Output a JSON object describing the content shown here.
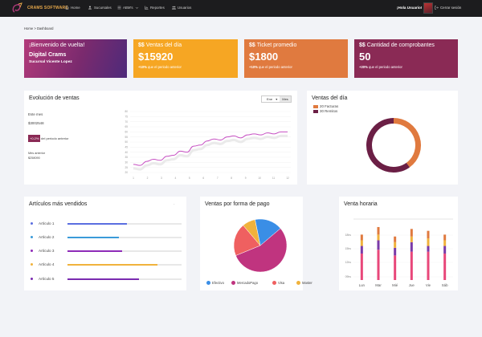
{
  "app": {
    "brand": "CRAMS SOFTWARE",
    "nav": [
      {
        "label": "Home",
        "icon": "home-icon"
      },
      {
        "label": "Sucursales",
        "icon": "users-icon"
      },
      {
        "label": "ABM's",
        "icon": "list-icon"
      },
      {
        "label": "Reportes",
        "icon": "chart-icon"
      },
      {
        "label": "Usuarios",
        "icon": "user-group-icon"
      }
    ],
    "greeting": "¡Hola Usuario!",
    "logout": "Cerrar sesión"
  },
  "breadcrumb": "Home > Dashboard",
  "kpis": {
    "welcome": {
      "title": "¡Bienvenido de vuelta!",
      "name": "Digital Crams",
      "branch": "Sucursal Vicente Lopez"
    },
    "ventas": {
      "title": "Ventas del día",
      "value": "$15920",
      "delta": "+10%",
      "delta_text": "que el periodo anterior"
    },
    "ticket": {
      "title": "Ticket promedio",
      "value": "$1800",
      "delta": "+10%",
      "delta_text": "que el periodo anterior"
    },
    "comprobantes": {
      "title": "Cantidad de comprobantes",
      "value": "50",
      "delta": "+20%",
      "delta_text": "que el periodo anterior"
    }
  },
  "evolucion": {
    "title": "Evolución de ventas",
    "month_select": "Ene",
    "period_button": "Mes",
    "este_mes_label": "Este mes",
    "este_mes_value": "$3002548",
    "delta": "+0.2%",
    "delta_text": "del periodo anterior",
    "mes_anterior_label": "Mes anterior",
    "mes_anterior_value": "$258090"
  },
  "ventas_dia": {
    "title": "Ventas del día",
    "legend": [
      {
        "label": "20 Facturas",
        "color": "#e07a3f"
      },
      {
        "label": "30 Remitos",
        "color": "#6b1f45"
      }
    ]
  },
  "articulos": {
    "title": "Artículos más vendidos",
    "items": [
      {
        "label": "Artículo 1",
        "color": "#5b6ee0",
        "fraction": 0.52
      },
      {
        "label": "Artículo 2",
        "color": "#3a9ad9",
        "fraction": 0.45
      },
      {
        "label": "Artículo 3",
        "color": "#8e2bb8",
        "fraction": 0.48
      },
      {
        "label": "Artículo 4",
        "color": "#f0b23c",
        "fraction": 0.79
      },
      {
        "label": "Artículo 5",
        "color": "#7a2bb0",
        "fraction": 0.63
      }
    ]
  },
  "pago": {
    "title": "Ventas por forma de pago",
    "legend": [
      {
        "label": "Efectivo",
        "color": "#3a8ee6"
      },
      {
        "label": "MercadoPago",
        "color": "#c0347f"
      },
      {
        "label": "Visa",
        "color": "#ef6060"
      },
      {
        "label": "Master",
        "color": "#f0b23c"
      }
    ]
  },
  "hora": {
    "title": "Venta horaria"
  },
  "chart_data": [
    {
      "type": "line",
      "x": [
        1,
        2,
        3,
        4,
        5,
        6,
        7,
        8,
        9,
        10,
        11,
        12,
        13,
        14,
        15,
        16,
        17,
        18,
        19,
        20,
        21,
        22,
        23,
        24
      ],
      "y": [
        28,
        27,
        31,
        33,
        32,
        36,
        37,
        41,
        40,
        46,
        47,
        51,
        53,
        52,
        55,
        56,
        54,
        57,
        58,
        57,
        59,
        58,
        60,
        60
      ],
      "xticks": [
        "1",
        "2",
        "3",
        "4",
        "5",
        "6",
        "7",
        "8",
        "9",
        "10",
        "11",
        "12"
      ],
      "yticks": [
        "20",
        "25",
        "30",
        "35",
        "40",
        "45",
        "50",
        "55",
        "60",
        "65",
        "70",
        "75",
        "80"
      ],
      "ylim": [
        20,
        80
      ],
      "color": "#c64fc2",
      "grid": true
    },
    {
      "type": "pie",
      "labels": [
        "20 Facturas",
        "30 Remitos"
      ],
      "values": [
        20,
        30
      ],
      "colors": [
        "#e07a3f",
        "#6b1f45"
      ],
      "donut": true
    },
    {
      "type": "pie",
      "labels": [
        "Efectivo",
        "MercadoPago",
        "Visa",
        "Master"
      ],
      "values": [
        17,
        55,
        20,
        8
      ],
      "colors": [
        "#3a8ee6",
        "#c0347f",
        "#ef6060",
        "#f0b23c"
      ]
    },
    {
      "type": "bar",
      "stacked": true,
      "categories": [
        "Lun",
        "Mar",
        "Mié",
        "Jue",
        "Vie",
        "Sáb"
      ],
      "yticks": [
        "09hs",
        "12hs",
        "15hs",
        "18hs"
      ],
      "series": [
        {
          "color": "#e8477a",
          "values": [
            14,
            16,
            13,
            15,
            15,
            14
          ]
        },
        {
          "color": "#7a3aa8",
          "values": [
            4,
            5,
            4,
            5,
            3,
            4
          ]
        },
        {
          "color": "#f0b23c",
          "values": [
            3,
            3,
            3,
            3,
            4,
            3
          ]
        },
        {
          "color": "#e07a3f",
          "values": [
            3,
            4,
            3,
            4,
            4,
            3
          ]
        }
      ]
    }
  ]
}
